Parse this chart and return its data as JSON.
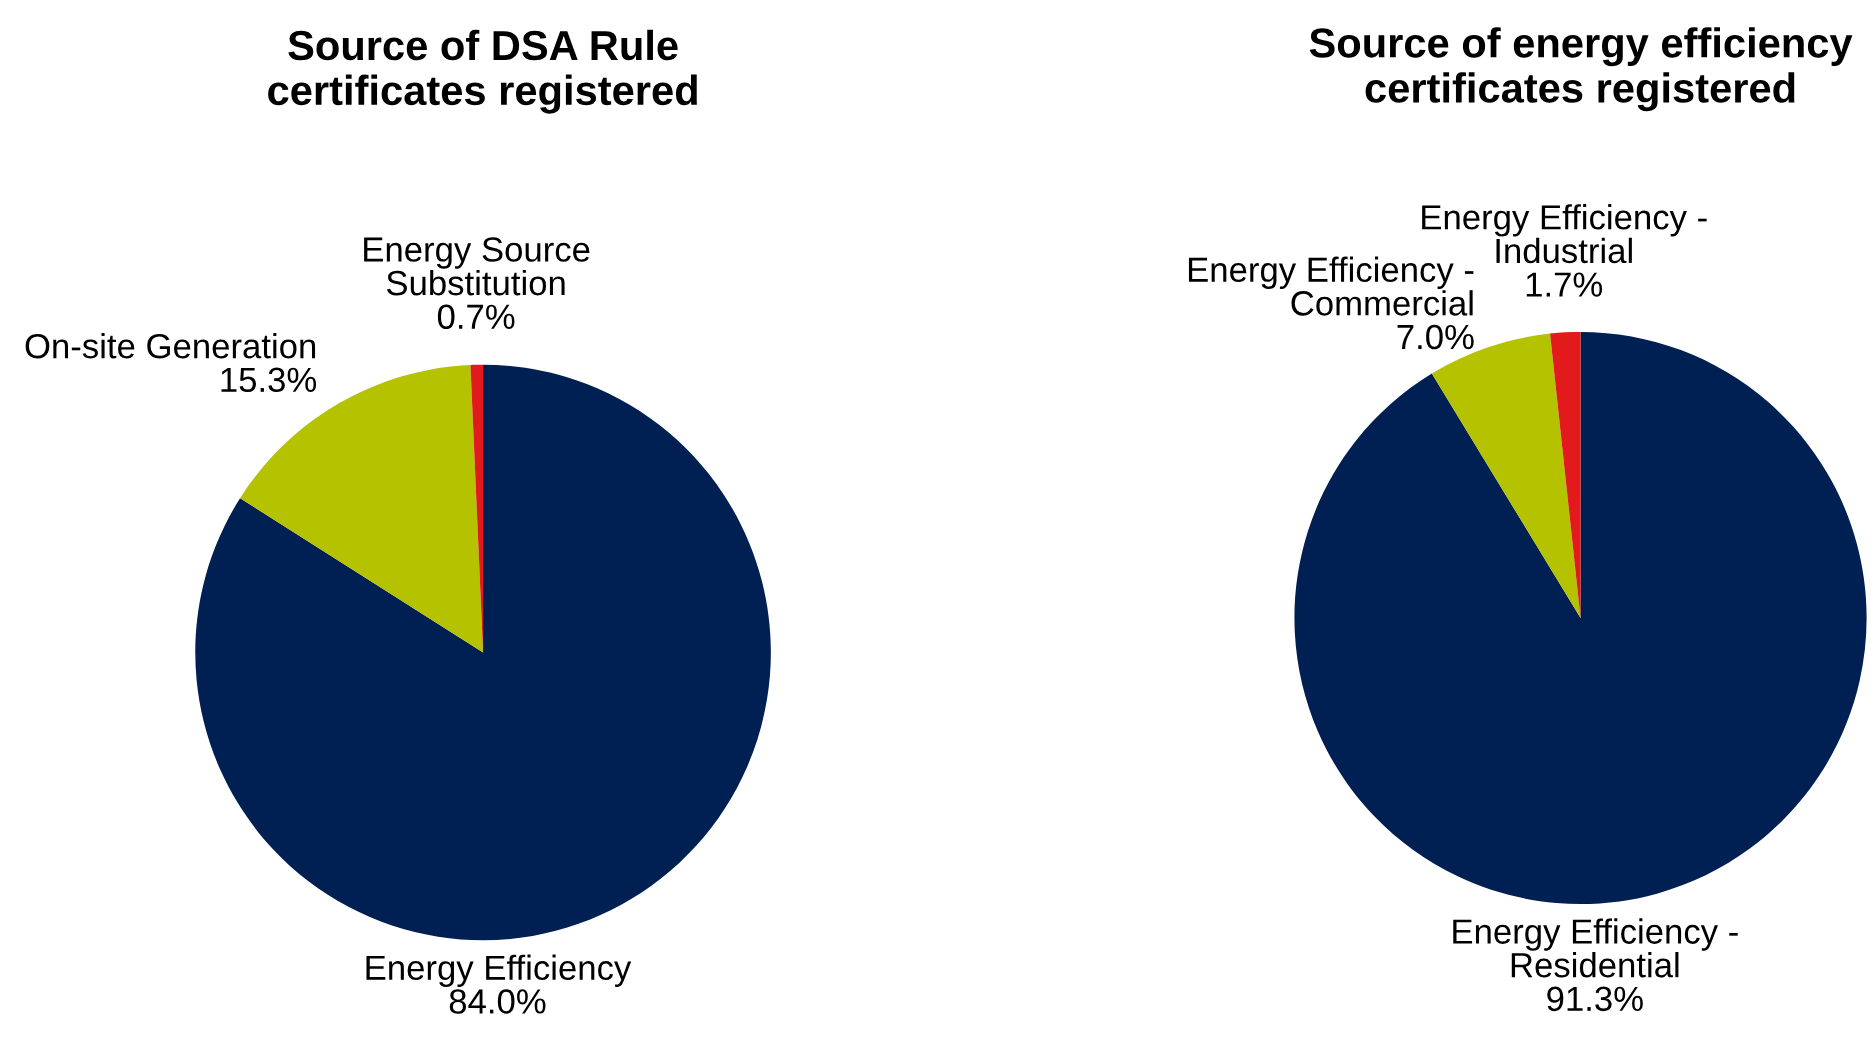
{
  "chart_data": [
    {
      "type": "pie",
      "title": "Source of DSA Rule\ncertificates registered",
      "categories": [
        "Energy Efficiency",
        "On-site Generation",
        "Energy Source\nSubstitution"
      ],
      "values": [
        84.0,
        15.3,
        0.7
      ],
      "colors": [
        "#001f52",
        "#b5c200",
        "#e31a1c"
      ],
      "value_labels": [
        "84.0%",
        "15.3%",
        "0.7%"
      ]
    },
    {
      "type": "pie",
      "title": "Source of energy efficiency\ncertificates registered",
      "categories": [
        "Energy Efficiency -\nResidential",
        "Energy Efficiency -\nCommercial",
        "Energy Efficiency -\nIndustrial"
      ],
      "values": [
        91.3,
        7.0,
        1.7
      ],
      "colors": [
        "#001f52",
        "#b5c200",
        "#e31a1c"
      ],
      "value_labels": [
        "91.3%",
        "7.0%",
        "1.7%"
      ]
    }
  ]
}
